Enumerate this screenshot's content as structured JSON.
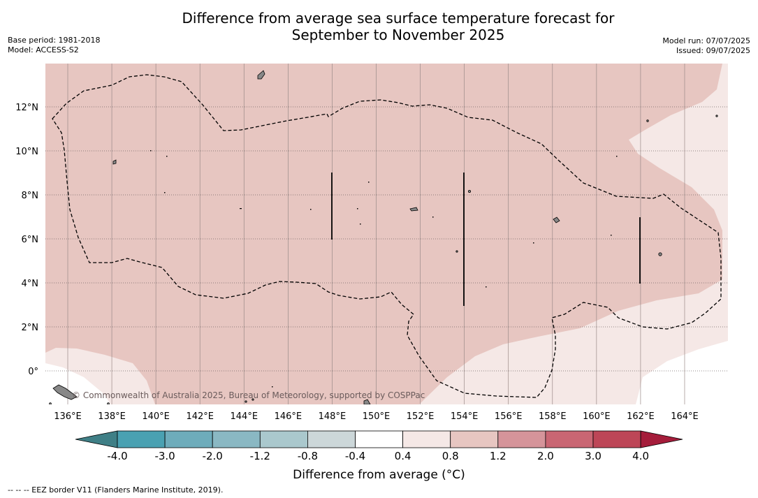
{
  "title_line1": "Difference from average sea surface temperature forecast for",
  "title_line2": "September to November 2025",
  "base_period": "Base period: 1981-2018",
  "model": "Model: ACCESS-S2",
  "model_run": "Model run: 07/07/2025",
  "issued": "Issued: 09/07/2025",
  "watermark": "© Commonwealth of Australia 2025, Bureau of Meteorology, supported by COSPPac",
  "lon_labels": [
    "136°E",
    "138°E",
    "140°E",
    "142°E",
    "144°E",
    "146°E",
    "148°E",
    "150°E",
    "152°E",
    "154°E",
    "156°E",
    "158°E",
    "160°E",
    "162°E",
    "164°E"
  ],
  "lat_labels": [
    "12°N",
    "10°N",
    "8°N",
    "6°N",
    "4°N",
    "2°N",
    "0°"
  ],
  "colorbar": {
    "title": "Difference from average (°C)",
    "tick_labels": [
      "-4.0",
      "-3.0",
      "-2.0",
      "-1.2",
      "-0.8",
      "-0.4",
      "0.4",
      "0.8",
      "1.2",
      "2.0",
      "3.0",
      "4.0"
    ],
    "colors": [
      "#3f7f86",
      "#4aa1b2",
      "#6eacbb",
      "#8ab8c3",
      "#aac8cd",
      "#ccd7d9",
      "#ffffff",
      "#f5e8e6",
      "#e7c6c1",
      "#d5949a",
      "#c96673",
      "#bd4657",
      "#a51d3b"
    ]
  },
  "map_colors": {
    "warm_main": "#e7c6c1",
    "warm_light": "#f5e8e6",
    "white": "#ffffff",
    "land": "#888888"
  },
  "footer": "--  --  -- EEZ border V11 (Flanders Marine Institute, 2019)."
}
